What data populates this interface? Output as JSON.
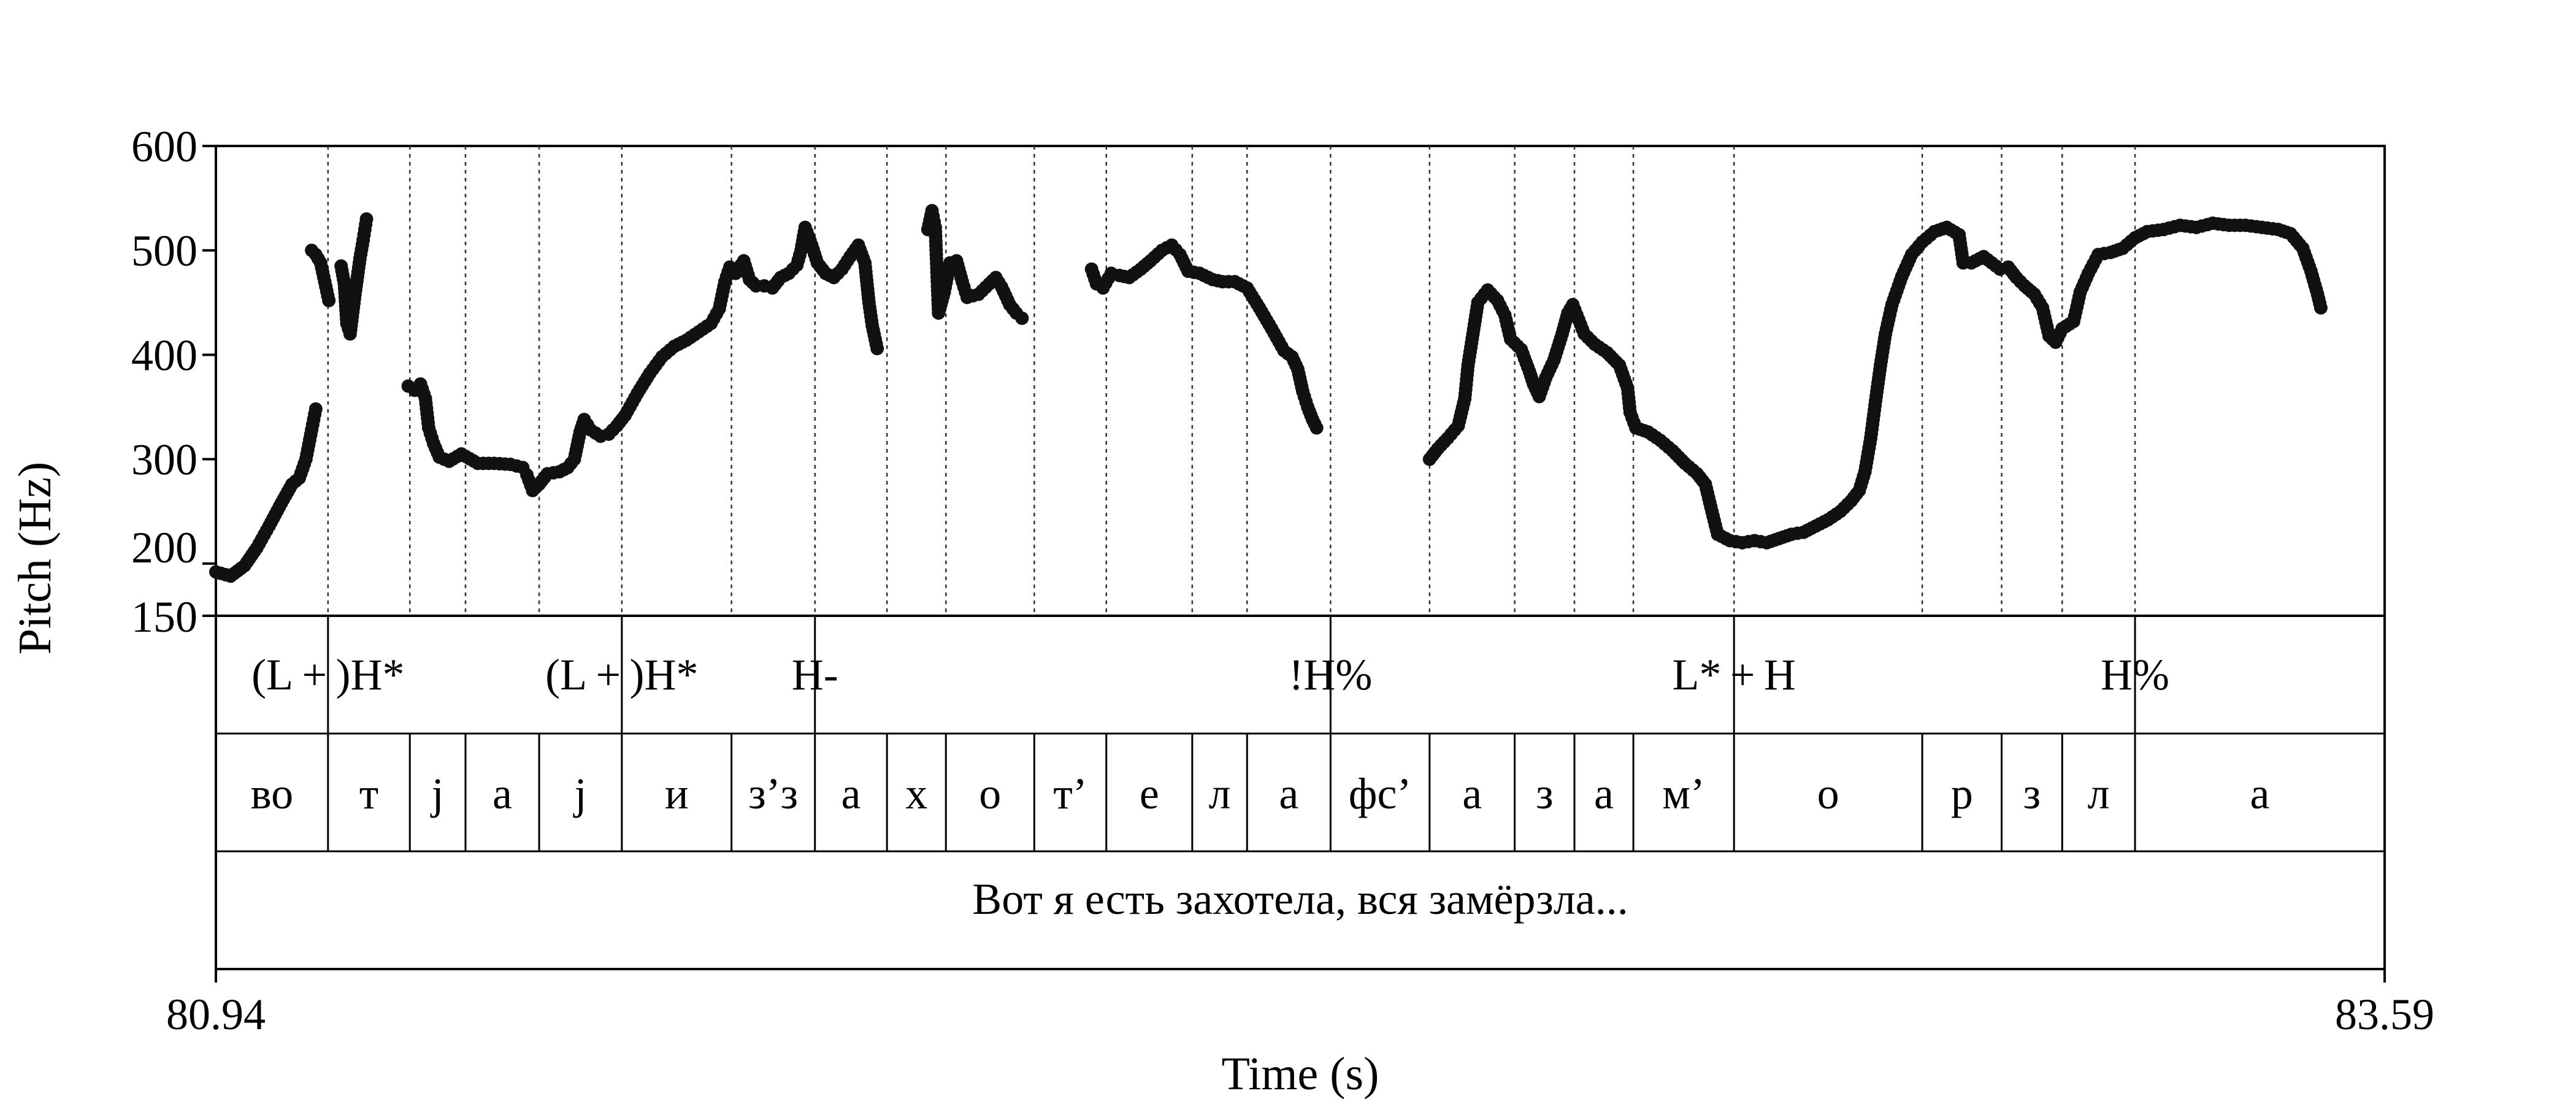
{
  "chart_data": {
    "type": "scatter",
    "xlabel": "Time (s)",
    "ylabel": "Pitch (Hz)",
    "xlim": [
      80.94,
      83.59
    ],
    "ylim": [
      150,
      600
    ],
    "x_tick_labels": [
      "80.94",
      "83.59"
    ],
    "y_ticks": [
      150,
      200,
      300,
      400,
      500,
      600
    ],
    "y_tick_labels": [
      "150",
      "200",
      "300",
      "400",
      "500",
      "600"
    ],
    "grid": false,
    "marker_color": "#111111",
    "boundaries": [
      81.077,
      81.177,
      81.245,
      81.335,
      81.436,
      81.57,
      81.672,
      81.76,
      81.832,
      81.94,
      82.028,
      82.133,
      82.2,
      82.302,
      82.423,
      82.527,
      82.6,
      82.672,
      82.795,
      83.025,
      83.122,
      83.196,
      83.285
    ],
    "tiers": {
      "tones": [
        {
          "time": 81.077,
          "label": "(L + )H*"
        },
        {
          "time": 81.436,
          "label": "(L + )H*"
        },
        {
          "time": 81.672,
          "label": "H-"
        },
        {
          "time": 82.302,
          "label": "!H%"
        },
        {
          "time": 82.795,
          "label": "L* + H"
        },
        {
          "time": 83.285,
          "label": "H%"
        }
      ],
      "segments": [
        {
          "start": 80.94,
          "end": 81.077,
          "label": "во"
        },
        {
          "start": 81.077,
          "end": 81.177,
          "label": "т"
        },
        {
          "start": 81.177,
          "end": 81.245,
          "label": "j"
        },
        {
          "start": 81.245,
          "end": 81.335,
          "label": "а"
        },
        {
          "start": 81.335,
          "end": 81.436,
          "label": "j"
        },
        {
          "start": 81.436,
          "end": 81.57,
          "label": "и"
        },
        {
          "start": 81.57,
          "end": 81.672,
          "label": "з’з"
        },
        {
          "start": 81.672,
          "end": 81.76,
          "label": "а"
        },
        {
          "start": 81.76,
          "end": 81.832,
          "label": "х"
        },
        {
          "start": 81.832,
          "end": 81.94,
          "label": "о"
        },
        {
          "start": 81.94,
          "end": 82.028,
          "label": "т’"
        },
        {
          "start": 82.028,
          "end": 82.133,
          "label": "е"
        },
        {
          "start": 82.133,
          "end": 82.2,
          "label": "л"
        },
        {
          "start": 82.2,
          "end": 82.302,
          "label": "а"
        },
        {
          "start": 82.302,
          "end": 82.423,
          "label": "фс’"
        },
        {
          "start": 82.423,
          "end": 82.527,
          "label": "а"
        },
        {
          "start": 82.527,
          "end": 82.6,
          "label": "з"
        },
        {
          "start": 82.6,
          "end": 82.672,
          "label": "а"
        },
        {
          "start": 82.672,
          "end": 82.795,
          "label": "м’"
        },
        {
          "start": 82.795,
          "end": 83.025,
          "label": "о"
        },
        {
          "start": 83.025,
          "end": 83.122,
          "label": "р"
        },
        {
          "start": 83.122,
          "end": 83.196,
          "label": "з"
        },
        {
          "start": 83.196,
          "end": 83.285,
          "label": "л"
        },
        {
          "start": 83.285,
          "end": 83.59,
          "label": "а"
        }
      ],
      "sentence": "Вот я есть захотела, вся замёрзла..."
    },
    "series": [
      {
        "values": [
          [
            80.94,
            192
          ],
          [
            80.958,
            188
          ],
          [
            80.975,
            198
          ],
          [
            80.99,
            215
          ],
          [
            81.005,
            236
          ],
          [
            81.02,
            258
          ],
          [
            81.033,
            276
          ],
          [
            81.042,
            282
          ],
          [
            81.05,
            300
          ],
          [
            81.057,
            328
          ],
          [
            81.062,
            348
          ]
        ]
      },
      {
        "values": [
          [
            81.057,
            500
          ],
          [
            81.062,
            496
          ],
          [
            81.068,
            488
          ],
          [
            81.073,
            470
          ],
          [
            81.078,
            452
          ]
        ]
      },
      {
        "values": [
          [
            81.093,
            485
          ],
          [
            81.097,
            468
          ],
          [
            81.1,
            430
          ],
          [
            81.104,
            420
          ],
          [
            81.11,
            458
          ],
          [
            81.116,
            492
          ],
          [
            81.12,
            510
          ],
          [
            81.124,
            530
          ]
        ]
      },
      {
        "values": [
          [
            81.175,
            370
          ],
          [
            81.183,
            366
          ],
          [
            81.19,
            372
          ],
          [
            81.196,
            358
          ],
          [
            81.2,
            330
          ],
          [
            81.206,
            315
          ],
          [
            81.213,
            302
          ],
          [
            81.225,
            298
          ],
          [
            81.24,
            305
          ],
          [
            81.26,
            296
          ],
          [
            81.28,
            296
          ],
          [
            81.3,
            295
          ],
          [
            81.315,
            292
          ],
          [
            81.32,
            285
          ],
          [
            81.327,
            270
          ],
          [
            81.335,
            276
          ],
          [
            81.345,
            286
          ],
          [
            81.36,
            288
          ],
          [
            81.37,
            292
          ],
          [
            81.378,
            300
          ],
          [
            81.385,
            326
          ],
          [
            81.39,
            338
          ],
          [
            81.398,
            328
          ],
          [
            81.41,
            322
          ],
          [
            81.42,
            324
          ],
          [
            81.43,
            332
          ],
          [
            81.44,
            342
          ],
          [
            81.455,
            363
          ],
          [
            81.47,
            382
          ],
          [
            81.485,
            398
          ],
          [
            81.5,
            408
          ],
          [
            81.515,
            414
          ],
          [
            81.53,
            422
          ],
          [
            81.545,
            430
          ],
          [
            81.555,
            444
          ],
          [
            81.562,
            470
          ],
          [
            81.568,
            484
          ],
          [
            81.575,
            478
          ],
          [
            81.585,
            490
          ],
          [
            81.592,
            472
          ],
          [
            81.6,
            466
          ],
          [
            81.61,
            466
          ],
          [
            81.62,
            464
          ],
          [
            81.63,
            474
          ],
          [
            81.64,
            478
          ],
          [
            81.65,
            486
          ],
          [
            81.655,
            500
          ],
          [
            81.66,
            522
          ],
          [
            81.668,
            505
          ],
          [
            81.675,
            488
          ],
          [
            81.685,
            478
          ],
          [
            81.695,
            474
          ],
          [
            81.705,
            482
          ],
          [
            81.715,
            494
          ],
          [
            81.725,
            505
          ],
          [
            81.733,
            488
          ],
          [
            81.738,
            450
          ],
          [
            81.742,
            428
          ],
          [
            81.748,
            406
          ]
        ]
      },
      {
        "values": [
          [
            81.81,
            520
          ],
          [
            81.815,
            538
          ],
          [
            81.819,
            522
          ],
          [
            81.823,
            440
          ],
          [
            81.83,
            460
          ],
          [
            81.837,
            488
          ],
          [
            81.845,
            490
          ],
          [
            81.852,
            470
          ],
          [
            81.858,
            455
          ],
          [
            81.872,
            458
          ],
          [
            81.885,
            468
          ],
          [
            81.893,
            474
          ],
          [
            81.9,
            465
          ],
          [
            81.91,
            448
          ],
          [
            81.918,
            440
          ],
          [
            81.925,
            435
          ]
        ]
      },
      {
        "values": [
          [
            82.01,
            482
          ],
          [
            82.016,
            468
          ],
          [
            82.024,
            464
          ],
          [
            82.034,
            478
          ],
          [
            82.044,
            476
          ],
          [
            82.056,
            474
          ],
          [
            82.07,
            482
          ],
          [
            82.082,
            490
          ],
          [
            82.096,
            500
          ],
          [
            82.108,
            505
          ],
          [
            82.118,
            496
          ],
          [
            82.128,
            480
          ],
          [
            82.142,
            478
          ],
          [
            82.158,
            472
          ],
          [
            82.17,
            470
          ],
          [
            82.185,
            470
          ],
          [
            82.2,
            464
          ],
          [
            82.215,
            445
          ],
          [
            82.23,
            425
          ],
          [
            82.245,
            404
          ],
          [
            82.255,
            398
          ],
          [
            82.262,
            386
          ],
          [
            82.268,
            365
          ],
          [
            82.274,
            350
          ],
          [
            82.28,
            338
          ],
          [
            82.285,
            330
          ]
        ]
      },
      {
        "values": [
          [
            82.423,
            300
          ],
          [
            82.433,
            310
          ],
          [
            82.445,
            320
          ],
          [
            82.458,
            332
          ],
          [
            82.466,
            358
          ],
          [
            82.47,
            390
          ],
          [
            82.476,
            420
          ],
          [
            82.482,
            450
          ],
          [
            82.494,
            462
          ],
          [
            82.506,
            452
          ],
          [
            82.515,
            438
          ],
          [
            82.522,
            415
          ],
          [
            82.535,
            405
          ],
          [
            82.545,
            384
          ],
          [
            82.55,
            372
          ],
          [
            82.557,
            360
          ],
          [
            82.565,
            378
          ],
          [
            82.575,
            395
          ],
          [
            82.585,
            420
          ],
          [
            82.592,
            440
          ],
          [
            82.598,
            448
          ],
          [
            82.603,
            438
          ],
          [
            82.612,
            420
          ],
          [
            82.625,
            410
          ],
          [
            82.64,
            402
          ],
          [
            82.655,
            390
          ],
          [
            82.665,
            368
          ],
          [
            82.668,
            345
          ],
          [
            82.675,
            330
          ],
          [
            82.69,
            326
          ],
          [
            82.705,
            318
          ],
          [
            82.72,
            308
          ],
          [
            82.735,
            296
          ],
          [
            82.75,
            286
          ],
          [
            82.76,
            276
          ],
          [
            82.768,
            250
          ],
          [
            82.775,
            228
          ],
          [
            82.79,
            222
          ],
          [
            82.805,
            220
          ],
          [
            82.82,
            222
          ],
          [
            82.835,
            220
          ],
          [
            82.85,
            224
          ],
          [
            82.865,
            228
          ],
          [
            82.88,
            230
          ],
          [
            82.895,
            236
          ],
          [
            82.91,
            242
          ],
          [
            82.925,
            250
          ],
          [
            82.938,
            260
          ],
          [
            82.948,
            270
          ],
          [
            82.955,
            288
          ],
          [
            82.962,
            320
          ],
          [
            82.968,
            356
          ],
          [
            82.974,
            390
          ],
          [
            82.98,
            420
          ],
          [
            82.988,
            448
          ],
          [
            83.0,
            475
          ],
          [
            83.012,
            496
          ],
          [
            83.025,
            508
          ],
          [
            83.04,
            518
          ],
          [
            83.055,
            522
          ],
          [
            83.07,
            515
          ],
          [
            83.075,
            488
          ],
          [
            83.085,
            488
          ],
          [
            83.1,
            494
          ],
          [
            83.11,
            488
          ],
          [
            83.12,
            482
          ],
          [
            83.13,
            484
          ],
          [
            83.14,
            474
          ],
          [
            83.15,
            466
          ],
          [
            83.162,
            458
          ],
          [
            83.172,
            445
          ],
          [
            83.18,
            418
          ],
          [
            83.188,
            412
          ],
          [
            83.196,
            425
          ],
          [
            83.21,
            432
          ],
          [
            83.218,
            460
          ],
          [
            83.228,
            478
          ],
          [
            83.24,
            496
          ],
          [
            83.255,
            498
          ],
          [
            83.27,
            502
          ],
          [
            83.285,
            512
          ],
          [
            83.3,
            518
          ],
          [
            83.32,
            520
          ],
          [
            83.34,
            524
          ],
          [
            83.36,
            522
          ],
          [
            83.38,
            526
          ],
          [
            83.4,
            524
          ],
          [
            83.42,
            524
          ],
          [
            83.44,
            522
          ],
          [
            83.46,
            520
          ],
          [
            83.475,
            516
          ],
          [
            83.49,
            502
          ],
          [
            83.5,
            480
          ],
          [
            83.508,
            458
          ],
          [
            83.512,
            445
          ]
        ]
      }
    ]
  }
}
